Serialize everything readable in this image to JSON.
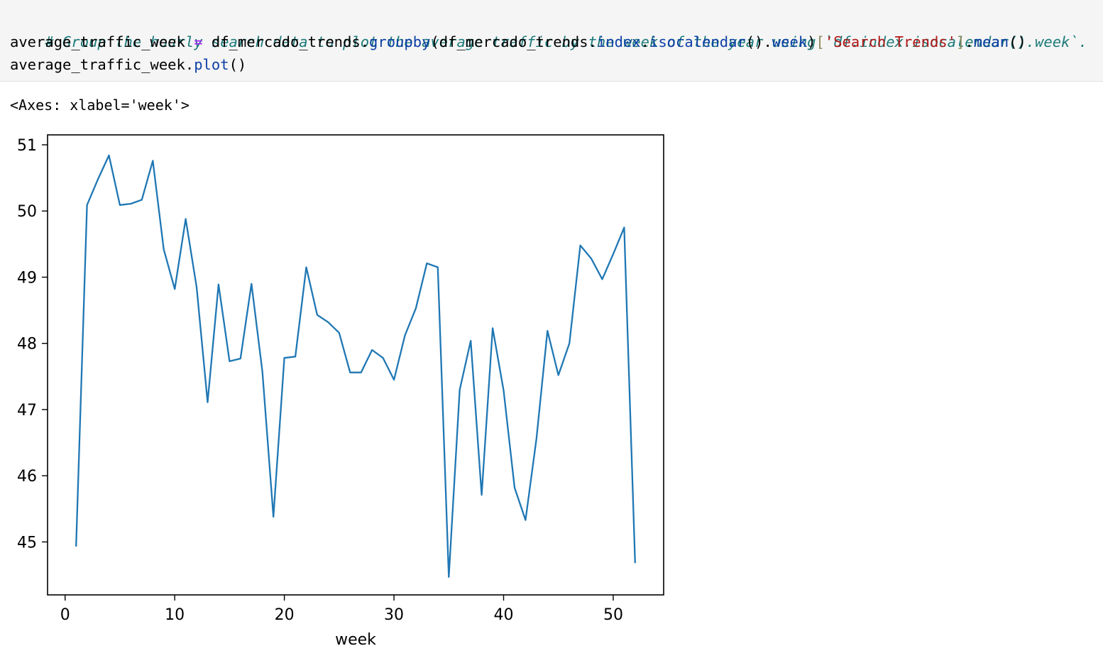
{
  "cell": {
    "comment_line": "# Group the hourly search data to plot the average traffic by the week of the year using `df.index.isocalendar().week`.",
    "code_line_2": [
      {
        "text": "average_traffic_week ",
        "role": "name"
      },
      {
        "text": "=",
        "role": "operator"
      },
      {
        "text": " df_mercado_trends.",
        "role": "name"
      },
      {
        "text": "groupby",
        "role": "builtin"
      },
      {
        "text": "(df_mercado_trends.",
        "role": "name"
      },
      {
        "text": "index",
        "role": "builtin"
      },
      {
        "text": ".",
        "role": "name"
      },
      {
        "text": "isocalendar",
        "role": "builtin"
      },
      {
        "text": "().",
        "role": "name"
      },
      {
        "text": "week",
        "role": "builtin"
      },
      {
        "text": ")",
        "role": "name"
      },
      {
        "text": "[",
        "role": "bracket"
      },
      {
        "text": "'Search Trends'",
        "role": "string"
      },
      {
        "text": "]",
        "role": "bracket"
      },
      {
        "text": ".",
        "role": "name"
      },
      {
        "text": "mean",
        "role": "builtin"
      },
      {
        "text": "()",
        "role": "name"
      }
    ],
    "code_line_3": [
      {
        "text": "average_traffic_week.",
        "role": "name"
      },
      {
        "text": "plot",
        "role": "builtin"
      },
      {
        "text": "()",
        "role": "name"
      }
    ]
  },
  "syntax_colors": {
    "comment": "#1d7a7a",
    "name": "#000000",
    "operator": "#aa22ff",
    "builtin": "#0d3fa6",
    "string": "#b21818",
    "bracket": "#8a8a5c"
  },
  "output": {
    "repr_text": "<Axes: xlabel='week'>"
  },
  "chart_data": {
    "type": "line",
    "xlabel": "week",
    "ylabel": "",
    "title": "",
    "x_ticks": [
      0,
      10,
      20,
      30,
      40,
      50
    ],
    "y_ticks": [
      45,
      46,
      47,
      48,
      49,
      50,
      51
    ],
    "xlim": [
      -1.6,
      54.6
    ],
    "ylim": [
      44.2,
      51.15
    ],
    "line_color": "#1f77b4",
    "grid": false,
    "legend": false,
    "series": [
      {
        "x": [
          1,
          2,
          3,
          4,
          5,
          6,
          7,
          8,
          9,
          10,
          11,
          12,
          13,
          14,
          15,
          16,
          17,
          18,
          19,
          20,
          21,
          22,
          23,
          24,
          25,
          26,
          27,
          28,
          29,
          30,
          31,
          32,
          33,
          34,
          35,
          36,
          37,
          38,
          39,
          40,
          41,
          42,
          43,
          44,
          45,
          46,
          47,
          48,
          49,
          50,
          51,
          52
        ],
        "values": [
          44.93,
          50.09,
          50.48,
          50.84,
          50.09,
          50.11,
          50.17,
          50.76,
          49.42,
          48.82,
          49.88,
          48.85,
          47.11,
          48.89,
          47.73,
          47.77,
          48.9,
          47.57,
          45.38,
          47.78,
          47.8,
          49.15,
          48.43,
          48.32,
          48.16,
          47.56,
          47.56,
          47.9,
          47.78,
          47.45,
          48.12,
          48.53,
          49.21,
          49.15,
          44.47,
          47.3,
          48.04,
          45.71,
          48.23,
          47.29,
          45.82,
          45.33,
          46.56,
          48.19,
          47.52,
          48.0,
          49.48,
          49.28,
          48.97,
          49.35,
          49.75,
          44.68
        ]
      }
    ]
  }
}
